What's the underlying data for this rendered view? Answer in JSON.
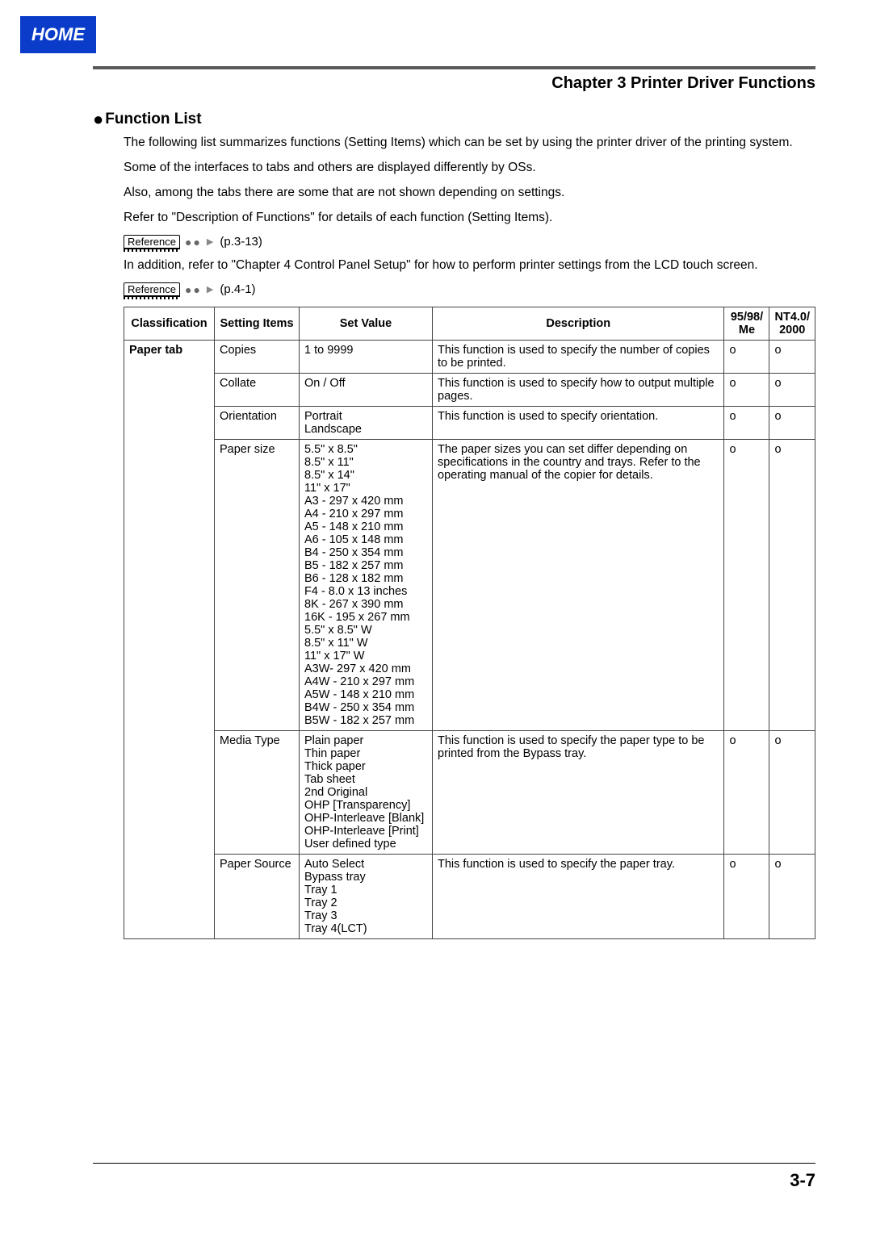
{
  "home_badge": "HOME",
  "chapter_title": "Chapter 3 Printer Driver Functions",
  "section_title": "Function List",
  "intro": {
    "p1": "The following list summarizes functions (Setting Items) which can be set by using the printer driver of the printing system.",
    "p2": "Some of the interfaces to tabs and others are displayed differently by OSs.",
    "p3": "Also, among the tabs there are some that are not shown depending on settings.",
    "p4": "Refer to \"Description of Functions\" for details of each function (Setting Items).",
    "p5": "In addition, refer to \"Chapter 4 Control Panel Setup\" for how to perform printer settings from the LCD touch screen."
  },
  "references": {
    "label": "Reference",
    "r1": "(p.3-13)",
    "r2": "(p.4-1)"
  },
  "table": {
    "headers": {
      "classification": "Classification",
      "setting_items": "Setting Items",
      "set_value": "Set Value",
      "description": "Description",
      "os1_l1": "95/98/",
      "os1_l2": "Me",
      "os2_l1": "NT4.0/",
      "os2_l2": "2000"
    },
    "classification_label": "Paper tab",
    "rows": [
      {
        "item": "Copies",
        "value": "1 to 9999",
        "desc": "This function is used to specify the number of copies to be printed.",
        "os1": "o",
        "os2": "o"
      },
      {
        "item": "Collate",
        "value": "On / Off",
        "desc": "This function is used to specify how to output multiple pages.",
        "os1": "o",
        "os2": "o"
      },
      {
        "item": "Orientation",
        "value": "Portrait\nLandscape",
        "desc": "This function is used to specify orientation.",
        "os1": "o",
        "os2": "o"
      },
      {
        "item": "Paper size",
        "value": "5.5\" x 8.5\"\n8.5\" x 11\"\n8.5\" x 14\"\n11\" x 17\"\nA3 - 297 x 420 mm\nA4 - 210 x 297 mm\nA5 - 148 x 210 mm\nA6 - 105 x 148 mm\nB4 - 250 x 354 mm\nB5 - 182 x 257 mm\nB6 - 128 x 182 mm\nF4 - 8.0 x 13 inches\n8K - 267 x 390 mm\n16K - 195 x 267 mm\n5.5\" x 8.5\" W\n8.5\" x 11\" W\n11\" x 17\" W\nA3W- 297 x 420 mm\nA4W - 210 x 297 mm\nA5W - 148 x 210 mm\nB4W - 250 x 354 mm\nB5W - 182 x 257 mm",
        "desc": "The paper sizes you can set differ  depending on specifications in the country and trays. Refer to the operating manual of the copier for details.",
        "os1": "o",
        "os2": "o"
      },
      {
        "item": "Media Type",
        "value": "Plain paper\nThin paper\nThick paper\nTab sheet\n2nd Original\nOHP [Transparency]\nOHP-Interleave [Blank]\nOHP-Interleave [Print]\nUser defined type",
        "desc": "This function is used to specify the paper type to be printed from the Bypass tray.",
        "os1": "o",
        "os2": "o"
      },
      {
        "item": "Paper Source",
        "value": "Auto Select\nBypass tray\nTray 1\nTray 2\nTray 3\nTray 4(LCT)",
        "desc": "This function is used to specify the paper tray.",
        "os1": "o",
        "os2": "o"
      }
    ]
  },
  "page_number": "3-7"
}
